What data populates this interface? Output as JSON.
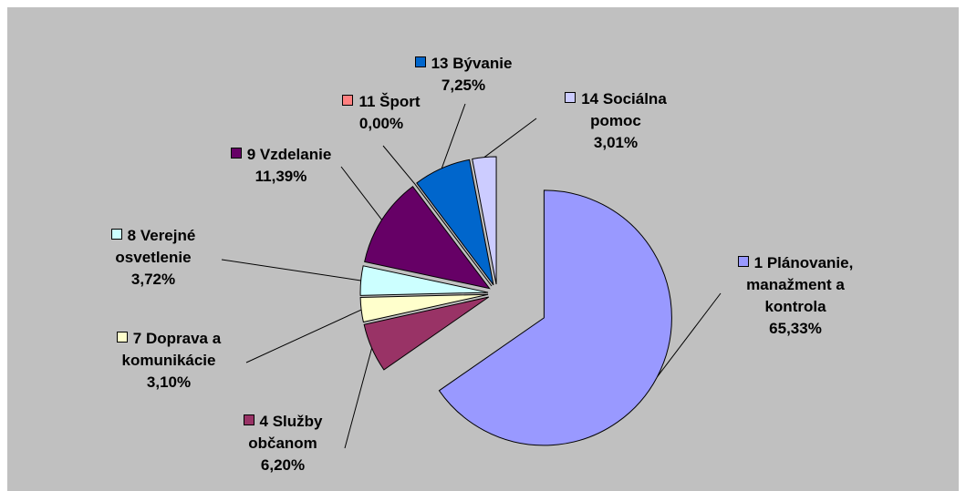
{
  "chart_data": {
    "type": "pie",
    "categories": [
      "1 Plánovanie, manažment a kontrola",
      "4 Služby občanom",
      "7 Doprava a komunikácie",
      "8 Verejné osvetlenie",
      "9 Vzdelanie",
      "11 Šport",
      "13 Bývanie",
      "14 Sociálna pomoc"
    ],
    "values": [
      65.33,
      6.2,
      3.1,
      3.72,
      11.39,
      0.0,
      7.25,
      3.01
    ],
    "value_labels": [
      "65,33%",
      "6,20%",
      "3,10%",
      "3,72%",
      "11,39%",
      "0,00%",
      "7,25%",
      "3,01%"
    ],
    "colors": [
      "#9999ff",
      "#993366",
      "#ffffcc",
      "#ccffff",
      "#660066",
      "#ff8080",
      "#0066cc",
      "#ccccff"
    ]
  }
}
